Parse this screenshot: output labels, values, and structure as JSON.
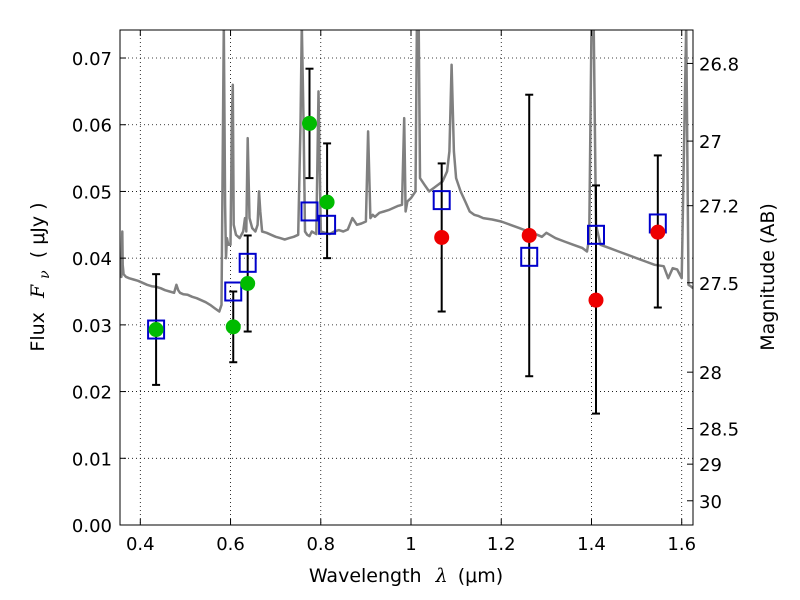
{
  "chart_data": {
    "type": "scatter",
    "xlabel": "Wavelength",
    "xlabel_symbol": "λ",
    "xlabel_unit": "(μm)",
    "ylabel": "Flux",
    "ylabel_symbol": "F",
    "ylabel_symbol_sub": "ν",
    "ylabel_unit": "( μJy )",
    "y2label": "Magnitude (AB)",
    "xlim": [
      0.355,
      1.625
    ],
    "ylim": [
      0.0,
      0.0742
    ],
    "grid": true,
    "grid_style": "dotted",
    "x_ticks": [
      {
        "value": 0.4,
        "label": "0.4"
      },
      {
        "value": 0.6,
        "label": "0.6"
      },
      {
        "value": 0.8,
        "label": "0.8"
      },
      {
        "value": 1.0,
        "label": "1"
      },
      {
        "value": 1.2,
        "label": "1.2"
      },
      {
        "value": 1.4,
        "label": "1.4"
      },
      {
        "value": 1.6,
        "label": "1.6"
      }
    ],
    "y_ticks": [
      {
        "value": 0.0,
        "label": "0.00"
      },
      {
        "value": 0.01,
        "label": "0.01"
      },
      {
        "value": 0.02,
        "label": "0.02"
      },
      {
        "value": 0.03,
        "label": "0.03"
      },
      {
        "value": 0.04,
        "label": "0.04"
      },
      {
        "value": 0.05,
        "label": "0.05"
      },
      {
        "value": 0.06,
        "label": "0.06"
      },
      {
        "value": 0.07,
        "label": "0.07"
      }
    ],
    "y2_ticks": [
      {
        "value": 26.8,
        "label": "26.8"
      },
      {
        "value": 27.0,
        "label": "27"
      },
      {
        "value": 27.2,
        "label": "27.2"
      },
      {
        "value": 27.5,
        "label": "27.5"
      },
      {
        "value": 28.0,
        "label": "28"
      },
      {
        "value": 28.5,
        "label": "28.5"
      },
      {
        "value": 29.0,
        "label": "29"
      },
      {
        "value": 30.0,
        "label": "30"
      }
    ],
    "colors": {
      "model": "#808080",
      "model_points": "#0000cc",
      "observed_optical": "#00bb00",
      "observed_nir": "#ee0000",
      "errorbar": "#000000",
      "grid": "#000000"
    },
    "series": [
      {
        "name": "model spectrum",
        "kind": "line",
        "x": [
          0.355,
          0.358,
          0.36,
          0.361,
          0.363,
          0.368,
          0.375,
          0.385,
          0.395,
          0.405,
          0.415,
          0.425,
          0.435,
          0.445,
          0.455,
          0.465,
          0.475,
          0.48,
          0.484,
          0.488,
          0.495,
          0.505,
          0.515,
          0.525,
          0.535,
          0.545,
          0.555,
          0.565,
          0.575,
          0.58,
          0.585,
          0.588,
          0.59,
          0.592,
          0.595,
          0.6,
          0.603,
          0.605,
          0.607,
          0.612,
          0.62,
          0.628,
          0.632,
          0.635,
          0.638,
          0.642,
          0.648,
          0.655,
          0.66,
          0.663,
          0.666,
          0.67,
          0.68,
          0.69,
          0.7,
          0.71,
          0.72,
          0.73,
          0.74,
          0.75,
          0.755,
          0.758,
          0.762,
          0.765,
          0.77,
          0.775,
          0.78,
          0.79,
          0.795,
          0.8,
          0.81,
          0.82,
          0.83,
          0.84,
          0.85,
          0.86,
          0.87,
          0.88,
          0.89,
          0.9,
          0.905,
          0.91,
          0.915,
          0.92,
          0.93,
          0.94,
          0.95,
          0.96,
          0.97,
          0.98,
          0.985,
          0.988,
          0.992,
          1.0,
          1.01,
          1.013,
          1.017,
          1.02,
          1.03,
          1.04,
          1.05,
          1.06,
          1.07,
          1.08,
          1.085,
          1.09,
          1.095,
          1.1,
          1.11,
          1.12,
          1.13,
          1.14,
          1.15,
          1.16,
          1.18,
          1.2,
          1.22,
          1.24,
          1.26,
          1.28,
          1.29,
          1.3,
          1.32,
          1.34,
          1.36,
          1.38,
          1.39,
          1.395,
          1.4,
          1.405,
          1.41,
          1.42,
          1.44,
          1.46,
          1.48,
          1.5,
          1.52,
          1.54,
          1.56,
          1.57,
          1.58,
          1.59,
          1.6,
          1.61,
          1.615,
          1.62,
          1.625
        ],
        "y": [
          0.0375,
          0.0372,
          0.044,
          0.039,
          0.0376,
          0.0372,
          0.037,
          0.0368,
          0.0366,
          0.0363,
          0.036,
          0.0358,
          0.0357,
          0.0355,
          0.0352,
          0.035,
          0.0348,
          0.036,
          0.0352,
          0.0348,
          0.0346,
          0.0345,
          0.0342,
          0.034,
          0.0337,
          0.0334,
          0.033,
          0.0325,
          0.032,
          0.033,
          0.075,
          0.048,
          0.04,
          0.043,
          0.042,
          0.042,
          0.061,
          0.066,
          0.045,
          0.0435,
          0.043,
          0.044,
          0.046,
          0.044,
          0.058,
          0.046,
          0.0445,
          0.044,
          0.045,
          0.05,
          0.047,
          0.044,
          0.0438,
          0.0435,
          0.0432,
          0.043,
          0.0428,
          0.043,
          0.0432,
          0.0435,
          0.06,
          0.075,
          0.06,
          0.044,
          0.0435,
          0.0433,
          0.044,
          0.0436,
          0.065,
          0.044,
          0.0438,
          0.0436,
          0.044,
          0.0442,
          0.044,
          0.0443,
          0.046,
          0.045,
          0.0452,
          0.0455,
          0.059,
          0.046,
          0.0465,
          0.0462,
          0.0468,
          0.047,
          0.0472,
          0.0475,
          0.0478,
          0.048,
          0.061,
          0.047,
          0.0485,
          0.049,
          0.05,
          0.075,
          0.075,
          0.052,
          0.051,
          0.05,
          0.0505,
          0.051,
          0.0515,
          0.053,
          0.056,
          0.069,
          0.056,
          0.052,
          0.05,
          0.0485,
          0.047,
          0.0465,
          0.0463,
          0.046,
          0.0458,
          0.0455,
          0.045,
          0.0445,
          0.044,
          0.0435,
          0.0432,
          0.0438,
          0.043,
          0.0425,
          0.042,
          0.0415,
          0.041,
          0.043,
          0.075,
          0.075,
          0.045,
          0.042,
          0.0415,
          0.041,
          0.0405,
          0.04,
          0.0395,
          0.039,
          0.0388,
          0.037,
          0.0385,
          0.0383,
          0.037,
          0.075,
          0.036,
          0.0358,
          0.0355
        ]
      },
      {
        "name": "model photometry",
        "kind": "open-square",
        "x": [
          0.435,
          0.606,
          0.638,
          0.775,
          0.814,
          1.068,
          1.262,
          1.41,
          1.547
        ],
        "y": [
          0.0293,
          0.035,
          0.0393,
          0.047,
          0.045,
          0.0487,
          0.0402,
          0.0435,
          0.0452
        ]
      },
      {
        "name": "observed optical",
        "kind": "filled-circle",
        "x": [
          0.435,
          0.606,
          0.638,
          0.775,
          0.814
        ],
        "y": [
          0.0293,
          0.0297,
          0.0362,
          0.0602,
          0.0484
        ],
        "yerr_low": [
          0.0083,
          0.0053,
          0.0072,
          0.0082,
          0.0084
        ],
        "yerr_high": [
          0.0083,
          0.0053,
          0.0072,
          0.0082,
          0.0088
        ]
      },
      {
        "name": "observed near-IR",
        "kind": "filled-circle",
        "x": [
          1.068,
          1.262,
          1.41,
          1.547
        ],
        "y": [
          0.0431,
          0.0434,
          0.0337,
          0.0439
        ],
        "yerr_low": [
          0.0111,
          0.0211,
          0.017,
          0.0113
        ],
        "yerr_high": [
          0.0111,
          0.0211,
          0.0172,
          0.0115
        ]
      }
    ]
  }
}
